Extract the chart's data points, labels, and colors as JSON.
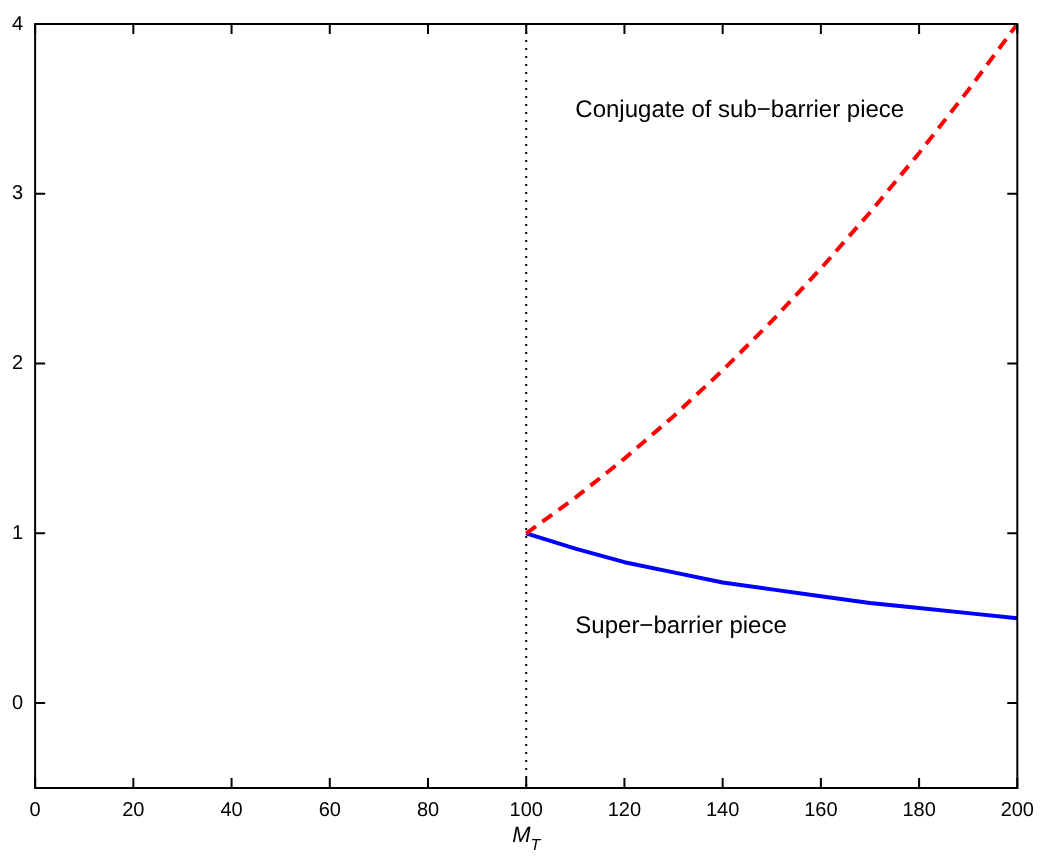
{
  "chart_data": {
    "type": "line",
    "xlabel": "M$_{T}$",
    "xlim": [
      0,
      200
    ],
    "xticks": [
      0,
      20,
      40,
      60,
      80,
      100,
      120,
      140,
      160,
      180,
      200
    ],
    "ylim": [
      -0.5,
      4
    ],
    "yticks": [
      0,
      1,
      2,
      3,
      4
    ],
    "grid": false,
    "legend": false,
    "marker": "none",
    "series": [
      {
        "name": "Conjugate of sub−barrier piece",
        "color": "#ff0000",
        "line_style": "dashed",
        "x": [
          100,
          110,
          120,
          130,
          140,
          150,
          160,
          170,
          180,
          190,
          200
        ],
        "values": [
          1,
          1.21,
          1.44,
          1.69,
          1.96,
          2.25,
          2.56,
          2.89,
          3.24,
          3.61,
          4
        ]
      },
      {
        "name": "Super−barrier piece",
        "color": "#0000ff",
        "line_style": "solid",
        "x": [
          100,
          110,
          120,
          130,
          140,
          150,
          160,
          170,
          180,
          190,
          200
        ],
        "values": [
          1,
          0.91,
          0.83,
          0.77,
          0.71,
          0.67,
          0.63,
          0.59,
          0.56,
          0.53,
          0.5
        ]
      }
    ],
    "ref_lines": [
      {
        "axis": "x",
        "value": 100,
        "color": "#000000",
        "line_style": "dotted"
      }
    ]
  }
}
